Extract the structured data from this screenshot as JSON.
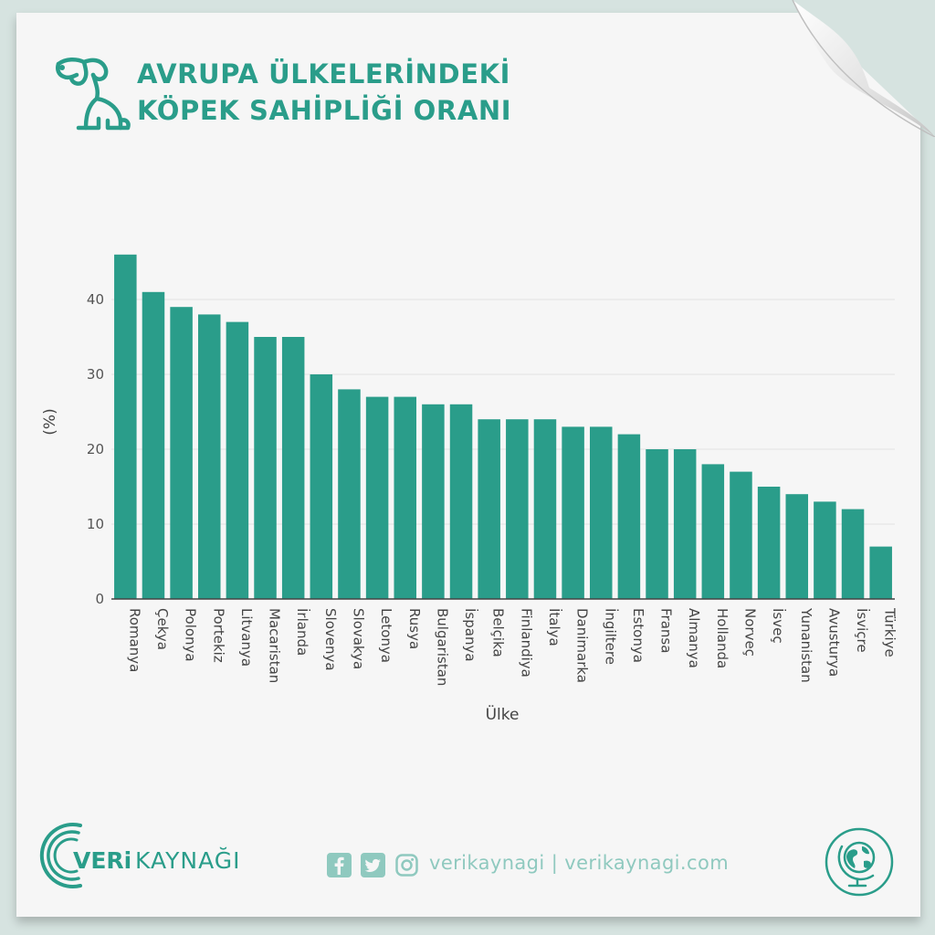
{
  "header": {
    "title_line_1": "AVRUPA ÜLKELERİNDEKİ",
    "title_line_2": "KÖPEK SAHİPLİĞİ ORANI",
    "icon": "dog-icon"
  },
  "colors": {
    "bar": "#2a9d8a",
    "accent": "#2a9d8a",
    "footer_text": "#8fc9bf"
  },
  "chart_data": {
    "type": "bar",
    "xlabel": "Ülke",
    "ylabel": "(%)",
    "ylim": [
      0,
      47
    ],
    "yticks": [
      0,
      10,
      20,
      30,
      40
    ],
    "grid": "horizontal",
    "categories": [
      "Romanya",
      "Çekya",
      "Polonya",
      "Portekiz",
      "Litvanya",
      "Macaristan",
      "İrlanda",
      "Slovenya",
      "Slovakya",
      "Letonya",
      "Rusya",
      "Bulgaristan",
      "İspanya",
      "Belçika",
      "Finlandiya",
      "İtalya",
      "Danimarka",
      "İngiltere",
      "Estonya",
      "Fransa",
      "Almanya",
      "Hollanda",
      "Norveç",
      "İsveç",
      "Yunanistan",
      "Avusturya",
      "İsviçre",
      "Türkiye"
    ],
    "values": [
      46,
      41,
      39,
      38,
      37,
      35,
      35,
      30,
      28,
      27,
      27,
      26,
      26,
      24,
      24,
      24,
      23,
      23,
      22,
      20,
      20,
      18,
      17,
      15,
      14,
      13,
      12,
      7
    ]
  },
  "footer": {
    "brand_veri": "VERi",
    "brand_kaynagi": "KAYNAĞI",
    "social_icons": [
      "facebook-icon",
      "twitter-icon",
      "instagram-icon"
    ],
    "handle": "verikaynagi | verikaynagi.com",
    "badge_icon": "globe-icon"
  }
}
